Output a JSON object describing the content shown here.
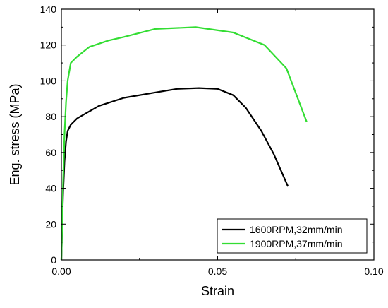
{
  "chart_data": {
    "type": "line",
    "title": "",
    "xlabel": "Strain",
    "ylabel": "Eng. stress (MPa)",
    "xlim": [
      0,
      0.1
    ],
    "ylim": [
      0,
      140
    ],
    "xticks": [
      0,
      0.05,
      0.1
    ],
    "xtick_labels": [
      "0.00",
      "0.05",
      "0.10"
    ],
    "yticks": [
      0,
      20,
      40,
      60,
      80,
      100,
      120,
      140
    ],
    "ytick_labels": [
      "0",
      "20",
      "40",
      "60",
      "80",
      "100",
      "120",
      "140"
    ],
    "grid": false,
    "legend_position": "bottom-right",
    "series": [
      {
        "name": "1600RPM,32mm/min",
        "color": "#000000",
        "x": [
          0,
          0.0005,
          0.001,
          0.0015,
          0.002,
          0.003,
          0.005,
          0.008,
          0.012,
          0.02,
          0.03,
          0.037,
          0.044,
          0.05,
          0.055,
          0.059,
          0.064,
          0.068,
          0.0725
        ],
        "y": [
          0,
          35,
          55,
          66,
          72,
          75.5,
          79,
          82,
          86,
          90.5,
          93.5,
          95.5,
          96,
          95.5,
          92,
          85,
          72,
          59,
          41
        ]
      },
      {
        "name": "1900RPM,37mm/min",
        "color": "#33dd33",
        "x": [
          0,
          0.0005,
          0.001,
          0.0015,
          0.002,
          0.003,
          0.005,
          0.009,
          0.015,
          0.02,
          0.03,
          0.043,
          0.055,
          0.065,
          0.072,
          0.0785
        ],
        "y": [
          0,
          40,
          70,
          88,
          100,
          110,
          113.5,
          119,
          122.5,
          124.5,
          129,
          130,
          127,
          120,
          107,
          77
        ]
      }
    ]
  }
}
